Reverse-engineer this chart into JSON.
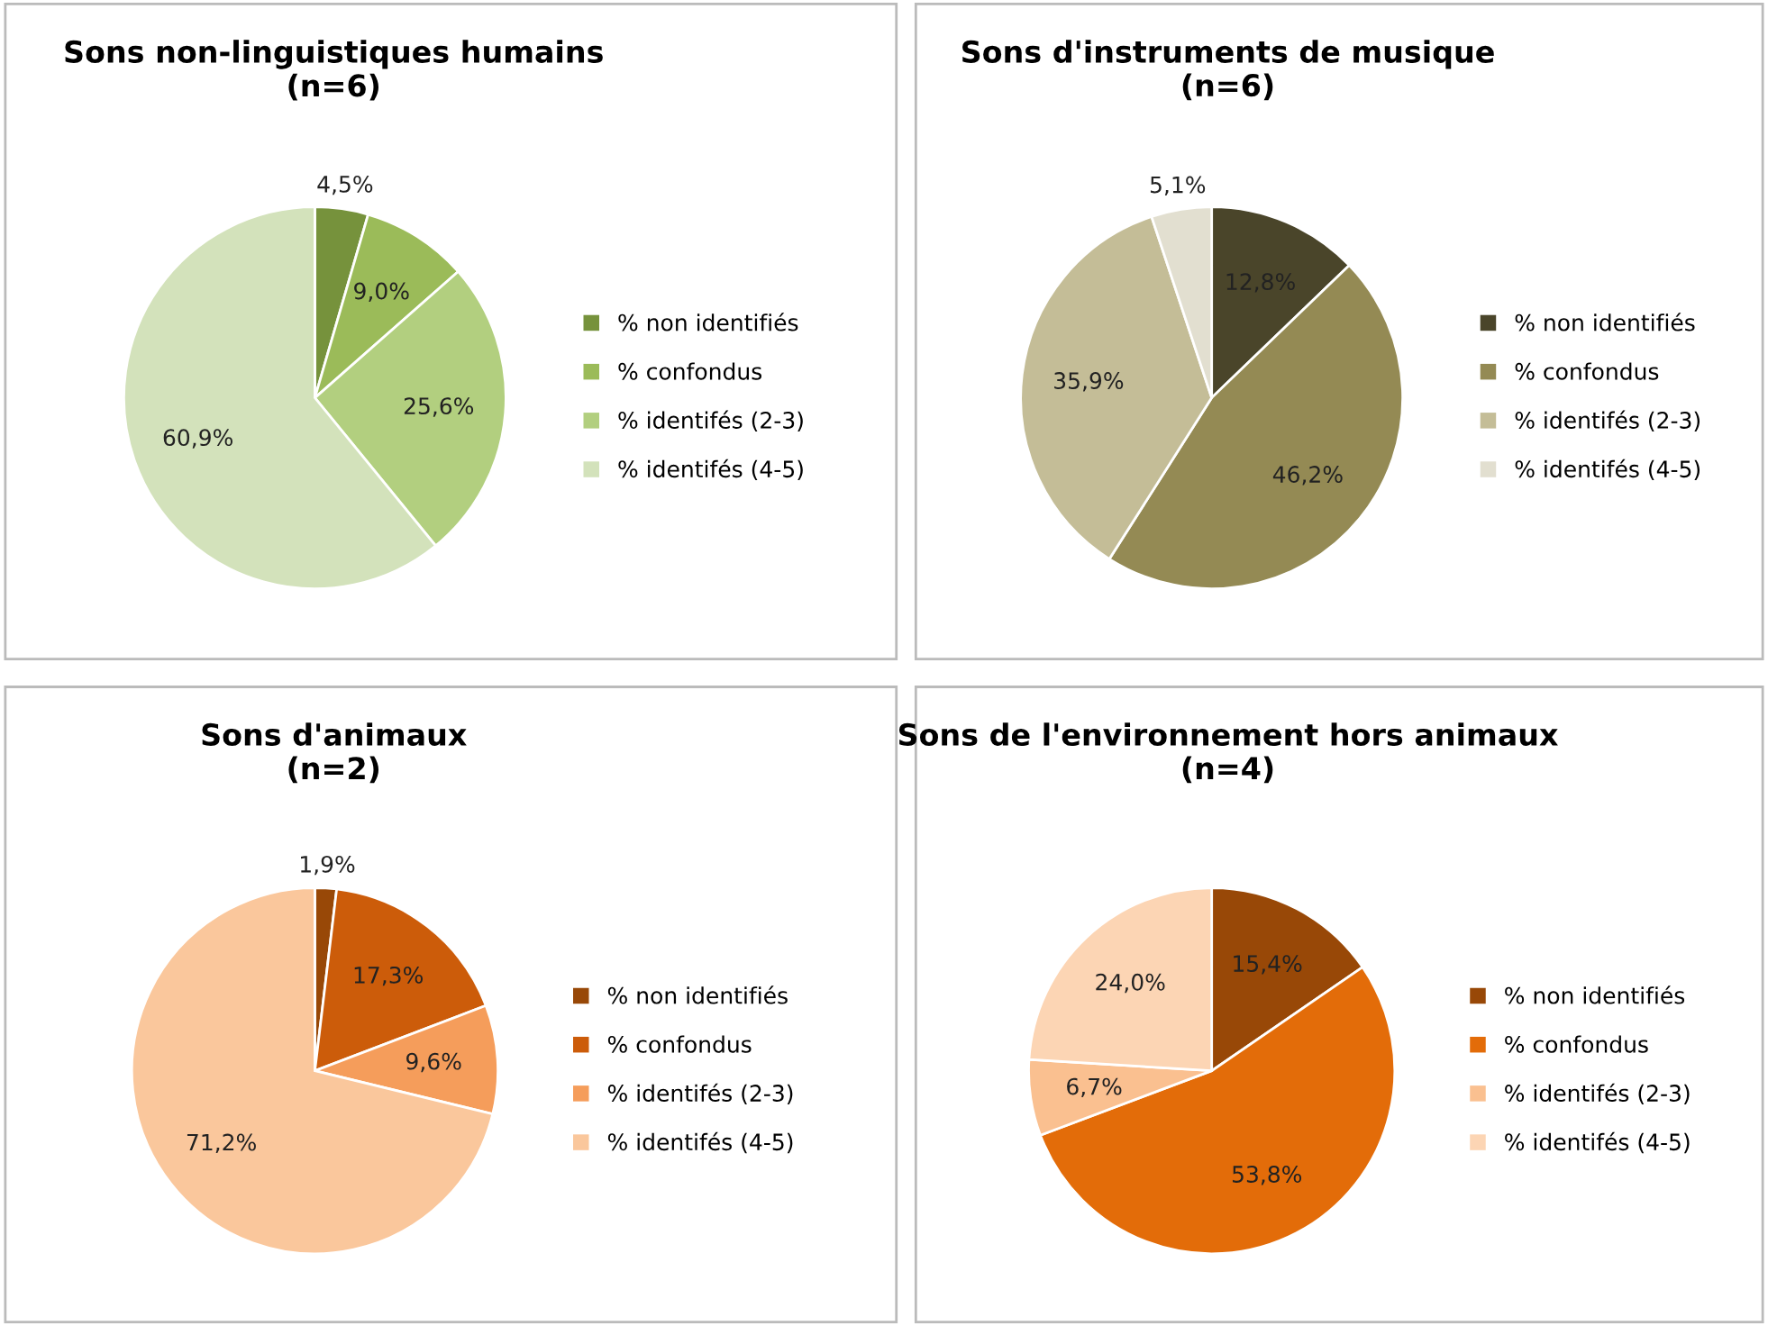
{
  "chart_data": [
    {
      "type": "pie",
      "title": "Sons non-linguistiques humains\n(n=6)",
      "categories": [
        "% non identifiés",
        "% confondus",
        "% identifés (2-3)",
        "% identifés (4-5)"
      ],
      "values": [
        4.5,
        9.0,
        25.6,
        60.9
      ],
      "value_labels": [
        "4,5%",
        "9,0%",
        "25,6%",
        "60,9%"
      ],
      "colors": [
        "#76923c",
        "#9bbb59",
        "#b2cf7f",
        "#d3e2bb"
      ],
      "legend": "right"
    },
    {
      "type": "pie",
      "title": "Sons d'instruments de musique\n(n=6)",
      "categories": [
        "% non identifiés",
        "% confondus",
        "% identifés (2-3)",
        "% identifés (4-5)"
      ],
      "values": [
        12.8,
        46.2,
        35.9,
        5.1
      ],
      "value_labels": [
        "12,8%",
        "46,2%",
        "35,9%",
        "5,1%"
      ],
      "colors": [
        "#4a452a",
        "#948a54",
        "#c4bd97",
        "#e2dfd0"
      ],
      "legend": "right"
    },
    {
      "type": "pie",
      "title": "Sons d'animaux\n(n=2)",
      "categories": [
        "% non identifiés",
        "% confondus",
        "% identifés (2-3)",
        "% identifés (4-5)"
      ],
      "values": [
        1.9,
        17.3,
        9.6,
        71.2
      ],
      "value_labels": [
        "1,9%",
        "17,3%",
        "9,6%",
        "71,2%"
      ],
      "colors": [
        "#984807",
        "#cc5c0a",
        "#f59d5b",
        "#fac79c"
      ],
      "legend": "right"
    },
    {
      "type": "pie",
      "title": "Sons de l'environnement hors animaux\n(n=4)",
      "categories": [
        "% non identifiés",
        "% confondus",
        "% identifés (2-3)",
        "% identifés (4-5)"
      ],
      "values": [
        15.4,
        53.8,
        6.7,
        24.0
      ],
      "value_labels": [
        "15,4%",
        "53,8%",
        "6,7%",
        "24,0%"
      ],
      "colors": [
        "#984807",
        "#e36c09",
        "#fac090",
        "#fcd5b4"
      ],
      "legend": "right"
    }
  ]
}
